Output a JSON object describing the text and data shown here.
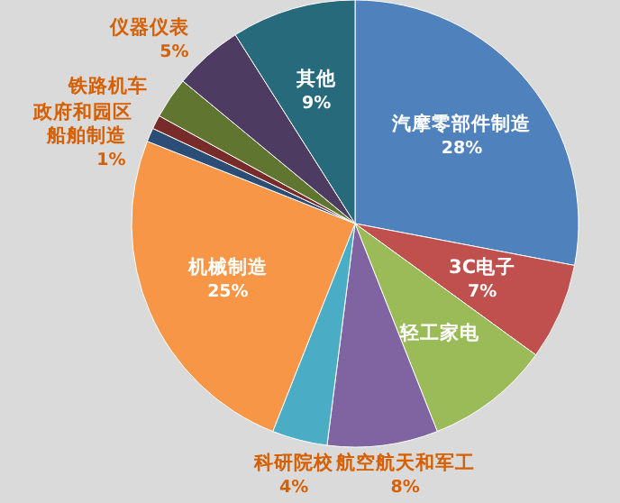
{
  "chart_data": {
    "type": "pie",
    "categories": [
      "汽摩零部件制造",
      "3C电子",
      "轻工家电",
      "航空航天和军工",
      "科研院校",
      "机械制造",
      "船舶制造",
      "政府和园区",
      "铁路机车",
      "仪器仪表",
      "其他"
    ],
    "values": [
      28,
      7,
      9,
      8,
      4,
      25,
      1,
      1,
      3,
      5,
      9
    ],
    "colors": [
      "#4f81bd",
      "#c0504d",
      "#9bbb59",
      "#8064a2",
      "#4bacc6",
      "#f79646",
      "#2c4d75",
      "#772c2a",
      "#5f7530",
      "#4d3b62",
      "#276a7c"
    ],
    "value_labels": [
      "28%",
      "7%",
      null,
      "8%",
      "4%",
      "25%",
      "1%",
      null,
      null,
      "5%",
      "9%"
    ]
  }
}
